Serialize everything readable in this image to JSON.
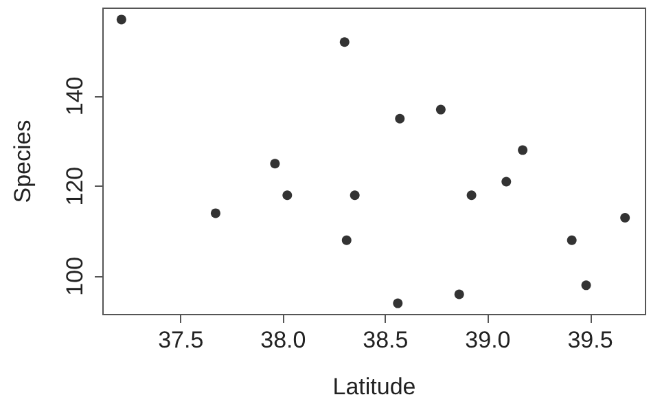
{
  "chart_data": {
    "type": "scatter",
    "xlabel": "Latitude",
    "ylabel": "Species",
    "x": [
      37.21,
      37.67,
      37.96,
      38.02,
      38.3,
      38.31,
      38.35,
      38.56,
      38.57,
      38.77,
      38.86,
      38.92,
      39.09,
      39.17,
      39.41,
      39.48,
      39.67
    ],
    "values": [
      157,
      114,
      125,
      118,
      152,
      108,
      118,
      94,
      135,
      137,
      96,
      118,
      121,
      128,
      108,
      98,
      113
    ],
    "color": "#000000",
    "marker": "circle",
    "xlim": [
      37.12,
      39.77
    ],
    "ylim": [
      91.5,
      159.5
    ],
    "xticks": [
      37.5,
      {
        "value": 38,
        "label": "38.0"
      },
      38.5,
      {
        "value": 39,
        "label": "39.0"
      },
      39.5
    ],
    "yticks": [
      100,
      120,
      140
    ],
    "grid": false
  }
}
